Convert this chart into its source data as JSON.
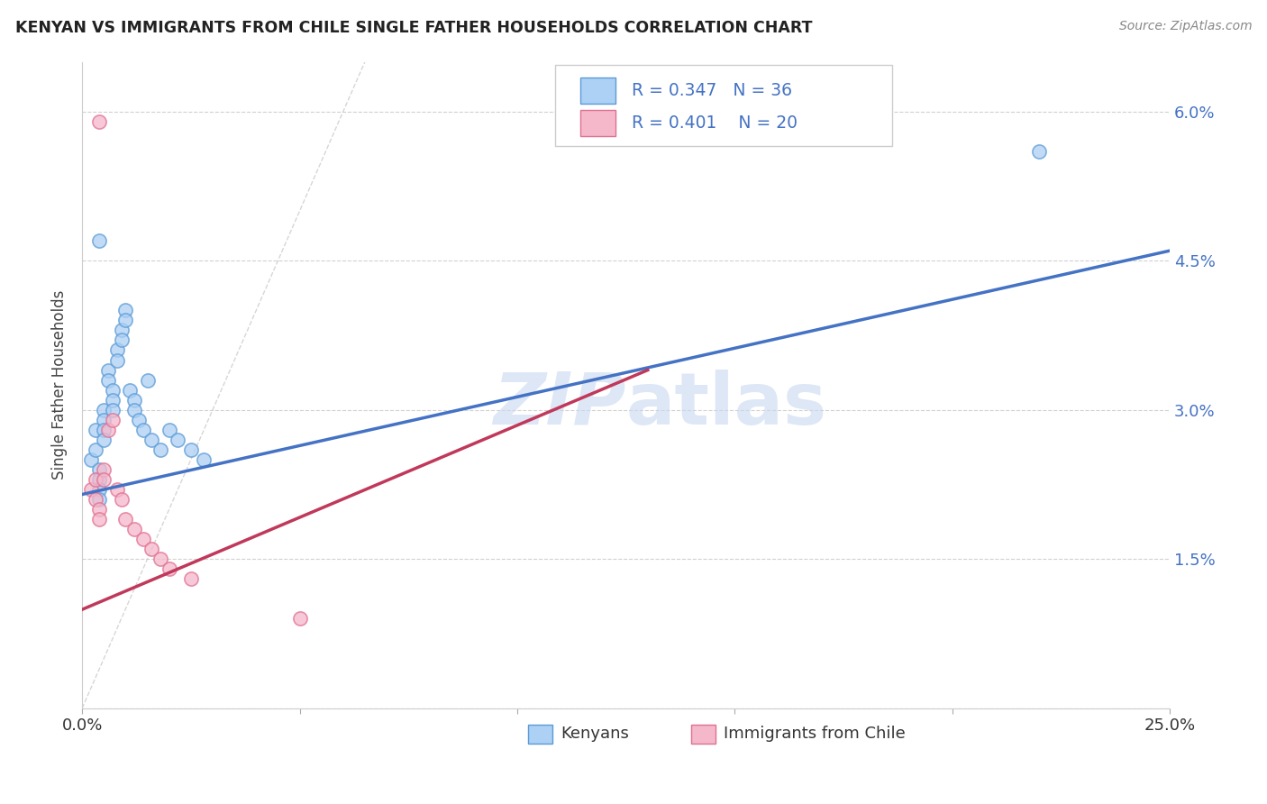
{
  "title": "KENYAN VS IMMIGRANTS FROM CHILE SINGLE FATHER HOUSEHOLDS CORRELATION CHART",
  "source": "Source: ZipAtlas.com",
  "xlim": [
    0.0,
    0.25
  ],
  "ylim": [
    0.0,
    0.065
  ],
  "ylabel": "Single Father Households",
  "legend_labels": [
    "Kenyans",
    "Immigrants from Chile"
  ],
  "kenyan_R": "0.347",
  "kenyan_N": "36",
  "chile_R": "0.401",
  "chile_N": "20",
  "kenyan_color": "#ADD0F5",
  "chile_color": "#F5B8CB",
  "kenyan_edge_color": "#5B9BD5",
  "chile_edge_color": "#E07090",
  "kenyan_line_color": "#4472C4",
  "chile_line_color": "#C0385A",
  "diagonal_color": "#CCCCCC",
  "watermark_color": "#C8D8F0",
  "background_color": "#FFFFFF",
  "grid_color": "#CCCCCC",
  "kenyan_scatter_x": [
    0.002,
    0.003,
    0.003,
    0.004,
    0.004,
    0.004,
    0.004,
    0.005,
    0.005,
    0.005,
    0.005,
    0.006,
    0.006,
    0.007,
    0.007,
    0.007,
    0.008,
    0.008,
    0.009,
    0.009,
    0.01,
    0.01,
    0.011,
    0.012,
    0.012,
    0.013,
    0.014,
    0.015,
    0.016,
    0.018,
    0.02,
    0.022,
    0.025,
    0.028,
    0.22,
    0.004
  ],
  "kenyan_scatter_y": [
    0.025,
    0.028,
    0.026,
    0.024,
    0.023,
    0.022,
    0.021,
    0.03,
    0.029,
    0.028,
    0.027,
    0.034,
    0.033,
    0.032,
    0.031,
    0.03,
    0.036,
    0.035,
    0.038,
    0.037,
    0.04,
    0.039,
    0.032,
    0.031,
    0.03,
    0.029,
    0.028,
    0.033,
    0.027,
    0.026,
    0.028,
    0.027,
    0.026,
    0.025,
    0.056,
    0.047
  ],
  "chile_scatter_x": [
    0.002,
    0.003,
    0.003,
    0.004,
    0.004,
    0.005,
    0.005,
    0.006,
    0.007,
    0.008,
    0.009,
    0.01,
    0.012,
    0.014,
    0.016,
    0.018,
    0.02,
    0.025,
    0.05,
    0.004
  ],
  "chile_scatter_y": [
    0.022,
    0.023,
    0.021,
    0.02,
    0.019,
    0.024,
    0.023,
    0.028,
    0.029,
    0.022,
    0.021,
    0.019,
    0.018,
    0.017,
    0.016,
    0.015,
    0.014,
    0.013,
    0.009,
    0.059
  ],
  "kenyan_trend_x": [
    0.0,
    0.25
  ],
  "kenyan_trend_y": [
    0.0215,
    0.046
  ],
  "chile_trend_x": [
    -0.005,
    0.13
  ],
  "chile_trend_y": [
    0.009,
    0.034
  ],
  "bg_color": "#FFFFFF"
}
